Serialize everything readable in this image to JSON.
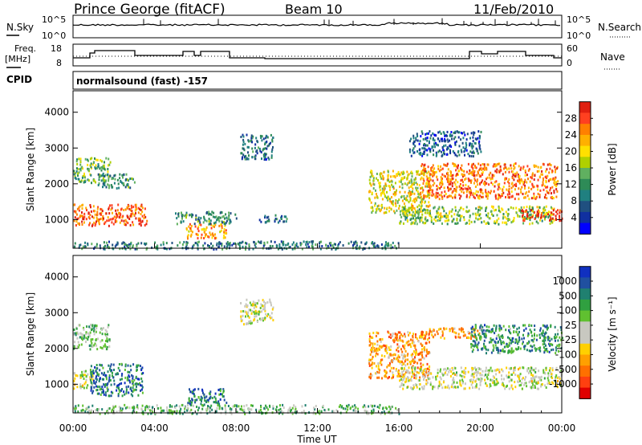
{
  "header": {
    "station": "Prince George (fitACF)",
    "beam": "Beam 10",
    "date": "11/Feb/2010"
  },
  "panels": {
    "noise": {
      "left_label": "N.Sky",
      "right_label": "N.Search",
      "left_ticks": [
        "10^5",
        "10^0"
      ],
      "right_ticks": [
        "10^5",
        "10^0"
      ]
    },
    "freq": {
      "left_label": "Freq.",
      "left_unit": "[MHz]",
      "right_label": "Nave",
      "left_ticks": [
        "18",
        "8"
      ],
      "right_ticks": [
        "60",
        "0"
      ]
    },
    "cpid": {
      "label": "CPID",
      "value": "normalsound (fast) -157"
    }
  },
  "colors": {
    "noise_line": "#000000",
    "freq_line": "#000000",
    "frame": "#000000"
  },
  "chart_data": [
    {
      "type": "heatmap",
      "name": "power",
      "ylabel": "Slant Range [km]",
      "ylim": [
        200,
        4600
      ],
      "yticks": [
        "4000",
        "3000",
        "2000",
        "1000"
      ],
      "ytick_values": [
        4000,
        3000,
        2000,
        1000
      ],
      "xlim_hours": [
        0,
        24
      ],
      "colorbar": {
        "label": "Power [dB]",
        "ticks": [
          "28",
          "24",
          "20",
          "16",
          "12",
          "8",
          "4"
        ],
        "colors": [
          "#e02010",
          "#ff4020",
          "#ff8000",
          "#ffb000",
          "#ffe000",
          "#b0d000",
          "#60b060",
          "#2e8b57",
          "#208080",
          "#205080",
          "#1030a0",
          "#0000ff"
        ]
      },
      "regions": [
        {
          "t0": 0.0,
          "t1": 3.6,
          "r0": 850,
          "r1": 1450,
          "level": 0.85
        },
        {
          "t0": 0.0,
          "t1": 1.8,
          "r0": 2050,
          "r1": 2750,
          "level": 0.45
        },
        {
          "t0": 1.2,
          "t1": 3.0,
          "r0": 1900,
          "r1": 2300,
          "level": 0.35
        },
        {
          "t0": 5.5,
          "t1": 7.5,
          "r0": 500,
          "r1": 900,
          "level": 0.75
        },
        {
          "t0": 5.0,
          "t1": 8.0,
          "r0": 900,
          "r1": 1250,
          "level": 0.35
        },
        {
          "t0": 8.2,
          "t1": 9.8,
          "r0": 2700,
          "r1": 3400,
          "level": 0.25
        },
        {
          "t0": 9.0,
          "t1": 10.5,
          "r0": 950,
          "r1": 1150,
          "level": 0.25
        },
        {
          "t0": 0.0,
          "t1": 16.0,
          "r0": 200,
          "r1": 420,
          "level": 0.3
        },
        {
          "t0": 14.5,
          "t1": 17.5,
          "r0": 1200,
          "r1": 2400,
          "level": 0.6
        },
        {
          "t0": 16.0,
          "t1": 23.6,
          "r0": 900,
          "r1": 1400,
          "level": 0.5
        },
        {
          "t0": 17.0,
          "t1": 23.8,
          "r0": 1600,
          "r1": 2600,
          "level": 0.8
        },
        {
          "t0": 16.5,
          "t1": 20.0,
          "r0": 2800,
          "r1": 3500,
          "level": 0.2
        },
        {
          "t0": 22.0,
          "t1": 24.0,
          "r0": 1000,
          "r1": 1300,
          "level": 0.95
        }
      ]
    },
    {
      "type": "heatmap",
      "name": "velocity",
      "ylabel": "Slant Range [km]",
      "xlabel": "Time UT",
      "ylim": [
        200,
        4600
      ],
      "yticks": [
        "4000",
        "3000",
        "2000",
        "1000"
      ],
      "ytick_values": [
        4000,
        3000,
        2000,
        1000
      ],
      "xlim_hours": [
        0,
        24
      ],
      "xticks": [
        "00:00",
        "04:00",
        "08:00",
        "12:00",
        "16:00",
        "20:00",
        "00:00"
      ],
      "xtick_values": [
        0,
        4,
        8,
        12,
        16,
        20,
        24
      ],
      "colorbar": {
        "label": "Velocity [m s⁻¹]",
        "ticks": [
          "1000",
          "500",
          "100",
          "25",
          "-25",
          "-100",
          "-500",
          "-1000"
        ],
        "colors": [
          "#1030c0",
          "#2050a0",
          "#208070",
          "#30a040",
          "#60c030",
          "#c8c8c0",
          "#c8c8c0",
          "#ffd000",
          "#ffa000",
          "#ff7000",
          "#ff4010",
          "#e00000"
        ]
      },
      "regions": [
        {
          "t0": 0.0,
          "t1": 1.0,
          "r0": 900,
          "r1": 1400,
          "level": 0.5
        },
        {
          "t0": 0.8,
          "t1": 3.4,
          "r0": 700,
          "r1": 1600,
          "level": 0.8
        },
        {
          "t0": 0.0,
          "t1": 1.8,
          "r0": 2000,
          "r1": 2700,
          "level": 0.6
        },
        {
          "t0": 5.5,
          "t1": 7.5,
          "r0": 450,
          "r1": 900,
          "level": 0.8
        },
        {
          "t0": 8.2,
          "t1": 9.8,
          "r0": 2700,
          "r1": 3400,
          "level": 0.5
        },
        {
          "t0": 0.0,
          "t1": 16.0,
          "r0": 200,
          "r1": 450,
          "level": 0.65
        },
        {
          "t0": 14.5,
          "t1": 17.5,
          "r0": 1200,
          "r1": 2500,
          "level": 0.3
        },
        {
          "t0": 16.0,
          "t1": 24.0,
          "r0": 900,
          "r1": 1500,
          "level": 0.5
        },
        {
          "t0": 17.0,
          "t1": 20.0,
          "r0": 2300,
          "r1": 2600,
          "level": 0.3
        },
        {
          "t0": 19.5,
          "t1": 24.0,
          "r0": 1900,
          "r1": 2700,
          "level": 0.75
        }
      ]
    }
  ]
}
